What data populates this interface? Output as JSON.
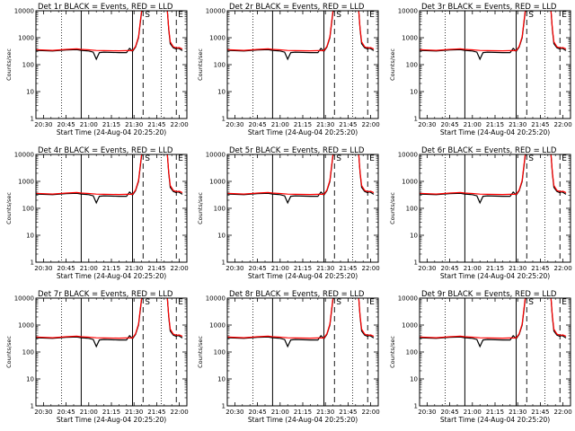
{
  "chart_data": [
    {
      "type": "line",
      "title": "Det 1r BLACK = Events, RED = LLD",
      "xlabel": "Start Time (24-Aug-04 20:25:20)",
      "ylabel": "Counts/sec",
      "x_tick_labels": [
        "20:30",
        "20:45",
        "21:00",
        "21:15",
        "21:30",
        "21:45",
        "22:00"
      ],
      "y_tick_labels": [
        "1",
        "10",
        "100",
        "1000",
        "10000"
      ],
      "y_scale": "log",
      "ylim": [
        1,
        10000
      ],
      "markers": [
        "S",
        "E"
      ],
      "series": [
        {
          "name": "Events",
          "color": "#000000"
        },
        {
          "name": "LLD",
          "color": "#ff0000"
        }
      ]
    },
    {
      "type": "line",
      "title": "Det 2r BLACK = Events, RED = LLD",
      "xlabel": "Start Time (24-Aug-04 20:25:20)",
      "ylabel": "Counts/sec",
      "x_tick_labels": [
        "20:30",
        "20:45",
        "21:00",
        "21:15",
        "21:30",
        "21:45",
        "22:00"
      ],
      "y_tick_labels": [
        "1",
        "10",
        "100",
        "1000",
        "10000"
      ],
      "y_scale": "log",
      "ylim": [
        1,
        10000
      ],
      "markers": [
        "S",
        "E"
      ],
      "series": [
        {
          "name": "Events",
          "color": "#000000"
        },
        {
          "name": "LLD",
          "color": "#ff0000"
        }
      ]
    },
    {
      "type": "line",
      "title": "Det 3r BLACK = Events, RED = LLD",
      "xlabel": "Start Time (24-Aug-04 20:25:20)",
      "ylabel": "Counts/sec",
      "x_tick_labels": [
        "20:30",
        "20:45",
        "21:00",
        "21:15",
        "21:30",
        "21:45",
        "22:00"
      ],
      "y_tick_labels": [
        "1",
        "10",
        "100",
        "1000",
        "10000"
      ],
      "y_scale": "log",
      "ylim": [
        1,
        10000
      ],
      "markers": [
        "S",
        "E"
      ],
      "series": [
        {
          "name": "Events",
          "color": "#000000"
        },
        {
          "name": "LLD",
          "color": "#ff0000"
        }
      ]
    },
    {
      "type": "line",
      "title": "Det 4r BLACK = Events, RED = LLD",
      "xlabel": "Start Time (24-Aug-04 20:25:20)",
      "ylabel": "Counts/sec",
      "x_tick_labels": [
        "20:30",
        "20:45",
        "21:00",
        "21:15",
        "21:30",
        "21:45",
        "22:00"
      ],
      "y_tick_labels": [
        "1",
        "10",
        "100",
        "1000",
        "10000"
      ],
      "y_scale": "log",
      "ylim": [
        1,
        10000
      ],
      "markers": [
        "S",
        "E"
      ],
      "series": [
        {
          "name": "Events",
          "color": "#000000"
        },
        {
          "name": "LLD",
          "color": "#ff0000"
        }
      ]
    },
    {
      "type": "line",
      "title": "Det 5r BLACK = Events, RED = LLD",
      "xlabel": "Start Time (24-Aug-04 20:25:20)",
      "ylabel": "Counts/sec",
      "x_tick_labels": [
        "20:30",
        "20:45",
        "21:00",
        "21:15",
        "21:30",
        "21:45",
        "22:00"
      ],
      "y_tick_labels": [
        "1",
        "10",
        "100",
        "1000",
        "10000"
      ],
      "y_scale": "log",
      "ylim": [
        1,
        10000
      ],
      "markers": [
        "S",
        "E"
      ],
      "series": [
        {
          "name": "Events",
          "color": "#000000"
        },
        {
          "name": "LLD",
          "color": "#ff0000"
        }
      ]
    },
    {
      "type": "line",
      "title": "Det 6r BLACK = Events, RED = LLD",
      "xlabel": "Start Time (24-Aug-04 20:25:20)",
      "ylabel": "Counts/sec",
      "x_tick_labels": [
        "20:30",
        "20:45",
        "21:00",
        "21:15",
        "21:30",
        "21:45",
        "22:00"
      ],
      "y_tick_labels": [
        "1",
        "10",
        "100",
        "1000",
        "10000"
      ],
      "y_scale": "log",
      "ylim": [
        1,
        10000
      ],
      "markers": [
        "S",
        "E"
      ],
      "series": [
        {
          "name": "Events",
          "color": "#000000"
        },
        {
          "name": "LLD",
          "color": "#ff0000"
        }
      ]
    },
    {
      "type": "line",
      "title": "Det 7r BLACK = Events, RED = LLD",
      "xlabel": "Start Time (24-Aug-04 20:25:20)",
      "ylabel": "Counts/sec",
      "x_tick_labels": [
        "20:30",
        "20:45",
        "21:00",
        "21:15",
        "21:30",
        "21:45",
        "22:00"
      ],
      "y_tick_labels": [
        "1",
        "10",
        "100",
        "1000",
        "10000"
      ],
      "y_scale": "log",
      "ylim": [
        1,
        10000
      ],
      "markers": [
        "S",
        "E"
      ],
      "series": [
        {
          "name": "Events",
          "color": "#000000"
        },
        {
          "name": "LLD",
          "color": "#ff0000"
        }
      ]
    },
    {
      "type": "line",
      "title": "Det 8r BLACK = Events, RED = LLD",
      "xlabel": "Start Time (24-Aug-04 20:25:20)",
      "ylabel": "Counts/sec",
      "x_tick_labels": [
        "20:30",
        "20:45",
        "21:00",
        "21:15",
        "21:30",
        "21:45",
        "22:00"
      ],
      "y_tick_labels": [
        "1",
        "10",
        "100",
        "1000",
        "10000"
      ],
      "y_scale": "log",
      "ylim": [
        1,
        10000
      ],
      "markers": [
        "S",
        "E"
      ],
      "series": [
        {
          "name": "Events",
          "color": "#000000"
        },
        {
          "name": "LLD",
          "color": "#ff0000"
        }
      ]
    },
    {
      "type": "line",
      "title": "Det 9r BLACK = Events, RED = LLD",
      "xlabel": "Start Time (24-Aug-04 20:25:20)",
      "ylabel": "Counts/sec",
      "x_tick_labels": [
        "20:30",
        "20:45",
        "21:00",
        "21:15",
        "21:30",
        "21:45",
        "22:00"
      ],
      "y_tick_labels": [
        "1",
        "10",
        "100",
        "1000",
        "10000"
      ],
      "y_scale": "log",
      "ylim": [
        1,
        10000
      ],
      "markers": [
        "S",
        "E"
      ],
      "series": [
        {
          "name": "Events",
          "color": "#000000"
        },
        {
          "name": "LLD",
          "color": "#ff0000"
        }
      ]
    }
  ],
  "time_axis": {
    "min": "20:25",
    "max": "22:05"
  },
  "solid_vlines": [
    "20:55",
    "21:29"
  ],
  "dotted_vlines": [
    "20:42",
    "21:48"
  ],
  "dashed_vlines": [
    "21:36",
    "21:58"
  ],
  "curve": {
    "events": [
      [
        "20:25",
        340
      ],
      [
        "20:36",
        320
      ],
      [
        "20:45",
        350
      ],
      [
        "20:52",
        360
      ],
      [
        "20:55",
        340
      ],
      [
        "21:00",
        320
      ],
      [
        "21:03",
        290
      ],
      [
        "21:05",
        160
      ],
      [
        "21:07",
        280
      ],
      [
        "21:10",
        290
      ],
      [
        "21:20",
        280
      ],
      [
        "21:25",
        280
      ],
      [
        "21:27",
        400
      ],
      [
        "21:28",
        360
      ],
      [
        "21:29",
        310
      ],
      [
        "21:31",
        450
      ],
      [
        "21:33",
        1000
      ],
      [
        "21:34",
        3000
      ],
      [
        "21:35",
        9000
      ],
      [
        "21:36",
        11000
      ],
      [
        "21:52",
        11000
      ],
      [
        "21:53",
        2000
      ],
      [
        "21:54",
        600
      ],
      [
        "21:56",
        420
      ],
      [
        "21:58",
        380
      ],
      [
        "21:59",
        410
      ],
      [
        "22:00",
        390
      ],
      [
        "22:02",
        330
      ]
    ],
    "lld": [
      [
        "20:25",
        360
      ],
      [
        "20:36",
        340
      ],
      [
        "20:45",
        370
      ],
      [
        "20:52",
        385
      ],
      [
        "20:55",
        370
      ],
      [
        "21:00",
        355
      ],
      [
        "21:05",
        335
      ],
      [
        "21:10",
        330
      ],
      [
        "21:20",
        325
      ],
      [
        "21:25",
        330
      ],
      [
        "21:29",
        330
      ],
      [
        "21:31",
        480
      ],
      [
        "21:33",
        1100
      ],
      [
        "21:34",
        3400
      ],
      [
        "21:35",
        10000
      ],
      [
        "21:36",
        11000
      ],
      [
        "21:52",
        11000
      ],
      [
        "21:53",
        2200
      ],
      [
        "21:54",
        700
      ],
      [
        "21:56",
        460
      ],
      [
        "21:58",
        420
      ],
      [
        "22:00",
        430
      ],
      [
        "22:02",
        380
      ]
    ]
  }
}
